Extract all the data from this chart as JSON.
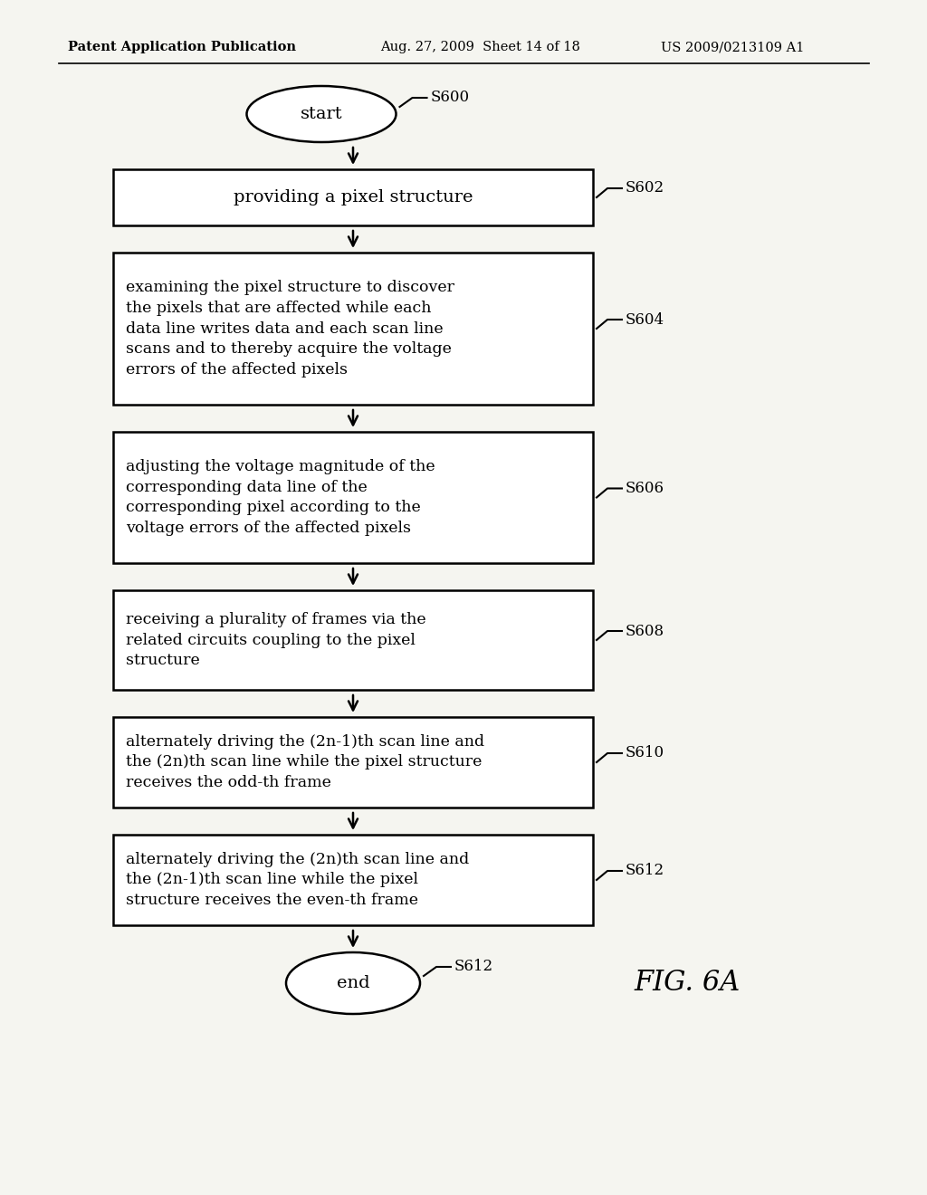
{
  "bg_color": "#f5f5f0",
  "header_left": "Patent Application Publication",
  "header_mid": "Aug. 27, 2009  Sheet 14 of 18",
  "header_right": "US 2009/0213109 A1",
  "figure_label": "FIG. 6A",
  "start_label": "start",
  "end_label": "end",
  "s600": "S600",
  "s602": "S602",
  "s604": "S604",
  "s606": "S606",
  "s608": "S608",
  "s610": "S610",
  "s612_box": "S612",
  "s612_end": "S612",
  "box602_text": "providing a pixel structure",
  "box604_text": "examining the pixel structure to discover\nthe pixels that are affected while each\ndata line writes data and each scan line\nscans and to thereby acquire the voltage\nerrors of the affected pixels",
  "box606_text": "adjusting the voltage magnitude of the\ncorresponding data line of the\ncorresponding pixel according to the\nvoltage errors of the affected pixels",
  "box608_text": "receiving a plurality of frames via the\nrelated circuits coupling to the pixel\nstructure",
  "box610_text": "alternately driving the (2n-1)th scan line and\nthe (2n)th scan line while the pixel structure\nreceives the odd-th frame",
  "box612_text": "alternately driving the (2n)th scan line and\nthe (2n-1)th scan line while the pixel\nstructure receives the even-th frame",
  "text_color": "#000000",
  "box_edge_color": "#000000",
  "arrow_color": "#000000"
}
